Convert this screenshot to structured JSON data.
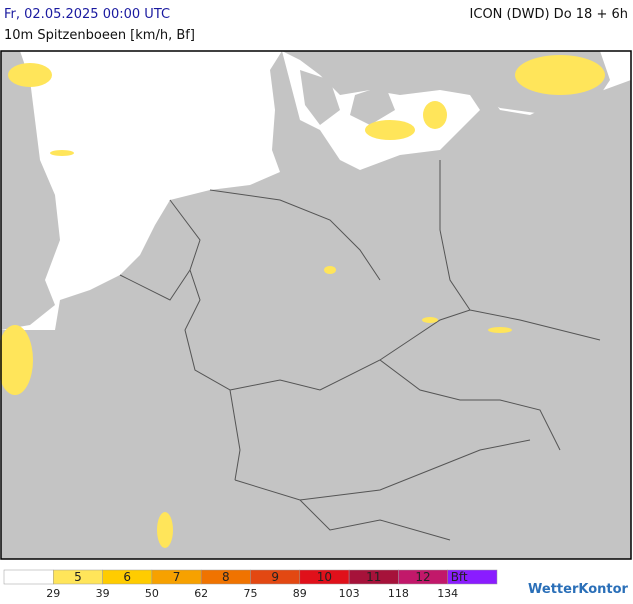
{
  "header": {
    "date": "Fr, 02.05.2025 00:00 UTC",
    "model": "ICON (DWD) Do 18 + 6h",
    "parameter": "10m Spitzenboeen [km/h, Bf]"
  },
  "legend": {
    "colors": [
      "#ffffff",
      "#ffe55a",
      "#ffcc00",
      "#f7a100",
      "#f07300",
      "#e34812",
      "#e0101a",
      "#a6123a",
      "#c2186a",
      "#8a1cff"
    ],
    "labels": [
      5,
      6,
      7,
      8,
      9,
      10,
      11,
      12,
      "Bft"
    ],
    "thresholds": [
      29,
      39,
      50,
      62,
      75,
      89,
      103,
      118,
      134
    ]
  },
  "brand": "WetterKontor"
}
